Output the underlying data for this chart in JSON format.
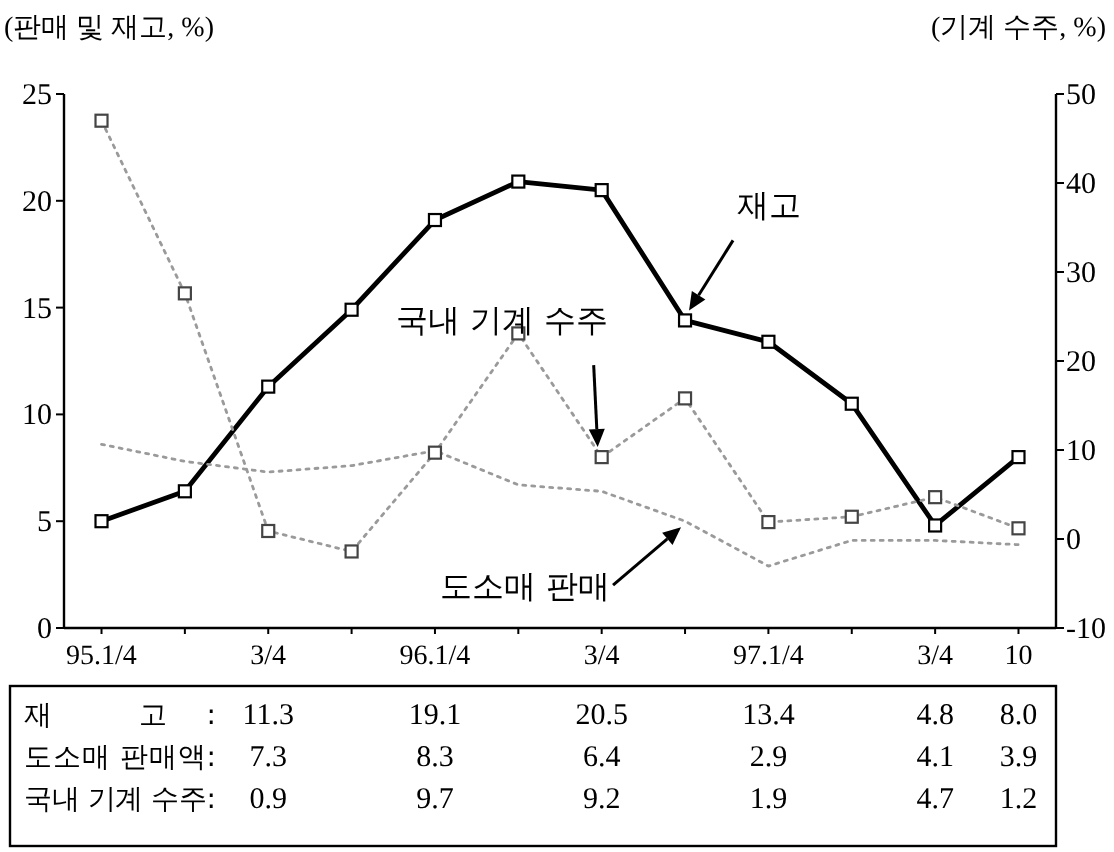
{
  "chart_data": {
    "type": "line",
    "ylabel": "(판매 및 재고, %)",
    "y2label": "(기계 수주, %)",
    "categories": [
      "95.1/4",
      null,
      "3/4",
      null,
      "96.1/4",
      null,
      "3/4",
      null,
      "97.1/4",
      null,
      "3/4",
      "10"
    ],
    "ylim": [
      0,
      25
    ],
    "yticks": [
      0,
      5,
      10,
      15,
      20,
      25
    ],
    "y2lim": [
      -10,
      50
    ],
    "y2ticks": [
      -10,
      0,
      10,
      20,
      30,
      40,
      50
    ],
    "grid": false,
    "series": [
      {
        "name": "재고",
        "color": "#000000",
        "marker": "square",
        "line_style": "solid",
        "values": [
          5.0,
          6.4,
          11.3,
          14.9,
          19.1,
          20.9,
          20.5,
          14.4,
          13.4,
          10.5,
          4.8,
          8.0
        ],
        "value_labels": [
          null,
          null,
          "11.3",
          null,
          "19.1",
          null,
          "20.5",
          null,
          "13.4",
          null,
          "4.8",
          "8.0"
        ]
      },
      {
        "name": "도소매 판매",
        "color": "#9a9a9a",
        "marker": "none",
        "line_style": "dotted",
        "values": [
          8.6,
          7.8,
          7.3,
          7.6,
          8.3,
          6.7,
          6.4,
          5.0,
          2.9,
          4.1,
          4.1,
          3.9
        ],
        "value_labels": [
          null,
          null,
          "7.3",
          null,
          "8.3",
          null,
          "6.4",
          null,
          "2.9",
          null,
          "4.1",
          "3.9"
        ]
      },
      {
        "name": "국내 기계 수주",
        "color": "#9a9a9a",
        "axis": "y2",
        "marker": "square",
        "line_style": "dotted",
        "values": [
          47.0,
          27.6,
          0.9,
          -1.4,
          9.7,
          23.1,
          9.2,
          15.8,
          1.9,
          2.5,
          4.7,
          1.2
        ],
        "value_labels": [
          null,
          null,
          "0.9",
          null,
          "9.7",
          null,
          "9.2",
          null,
          "1.9",
          null,
          "4.7",
          "1.2"
        ]
      }
    ],
    "annotations": [
      "재 고:",
      "도소매 판매액:",
      "국내 기계 수주:"
    ]
  }
}
